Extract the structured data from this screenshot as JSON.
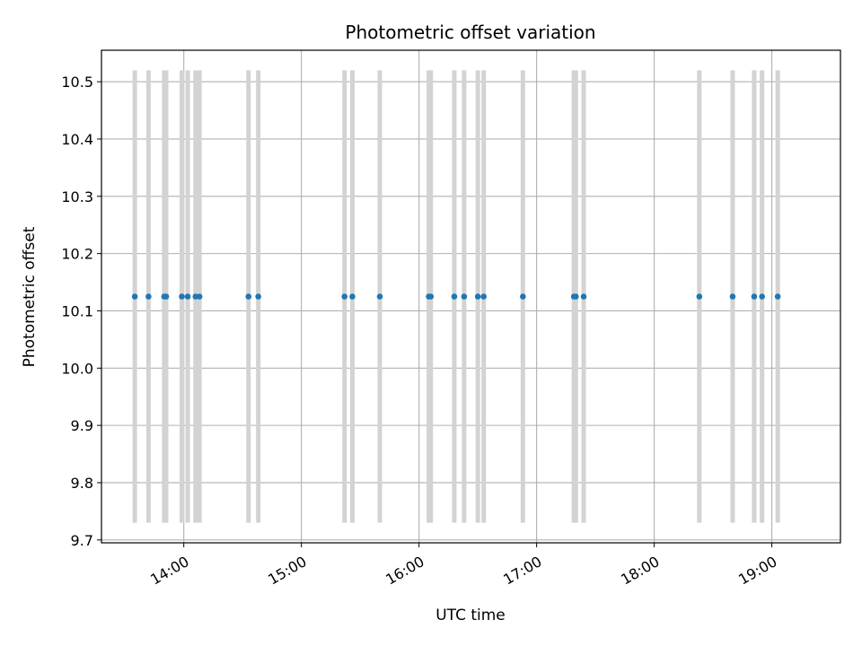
{
  "chart_data": {
    "type": "scatter",
    "title": "Photometric offset variation",
    "xlabel": "UTC time",
    "ylabel": "Photometric offset",
    "x_axis_type": "time",
    "xlim": [
      "13:18",
      "19:35"
    ],
    "ylim": [
      9.695,
      10.555
    ],
    "x_ticks": [
      "14:00",
      "15:00",
      "16:00",
      "17:00",
      "18:00",
      "19:00"
    ],
    "y_ticks": [
      9.7,
      9.8,
      9.9,
      10.0,
      10.1,
      10.2,
      10.3,
      10.4,
      10.5
    ],
    "grid": true,
    "point_color": "#1f77b4",
    "errorbar_color": "#d3d3d3",
    "error_range": [
      9.73,
      10.52
    ],
    "series": [
      {
        "x": [
          "13:35",
          "13:42",
          "13:50",
          "13:51",
          "13:59",
          "14:02",
          "14:06",
          "14:08",
          "14:33",
          "14:38",
          "15:22",
          "15:26",
          "15:40",
          "16:05",
          "16:06",
          "16:18",
          "16:23",
          "16:30",
          "16:33",
          "16:53",
          "17:19",
          "17:20",
          "17:24",
          "18:23",
          "18:40",
          "18:51",
          "18:55",
          "19:03"
        ],
        "y": [
          10.125,
          10.125,
          10.125,
          10.125,
          10.125,
          10.125,
          10.125,
          10.125,
          10.125,
          10.125,
          10.125,
          10.125,
          10.125,
          10.125,
          10.125,
          10.125,
          10.125,
          10.125,
          10.125,
          10.125,
          10.125,
          10.125,
          10.125,
          10.125,
          10.125,
          10.125,
          10.125,
          10.125
        ]
      }
    ]
  }
}
